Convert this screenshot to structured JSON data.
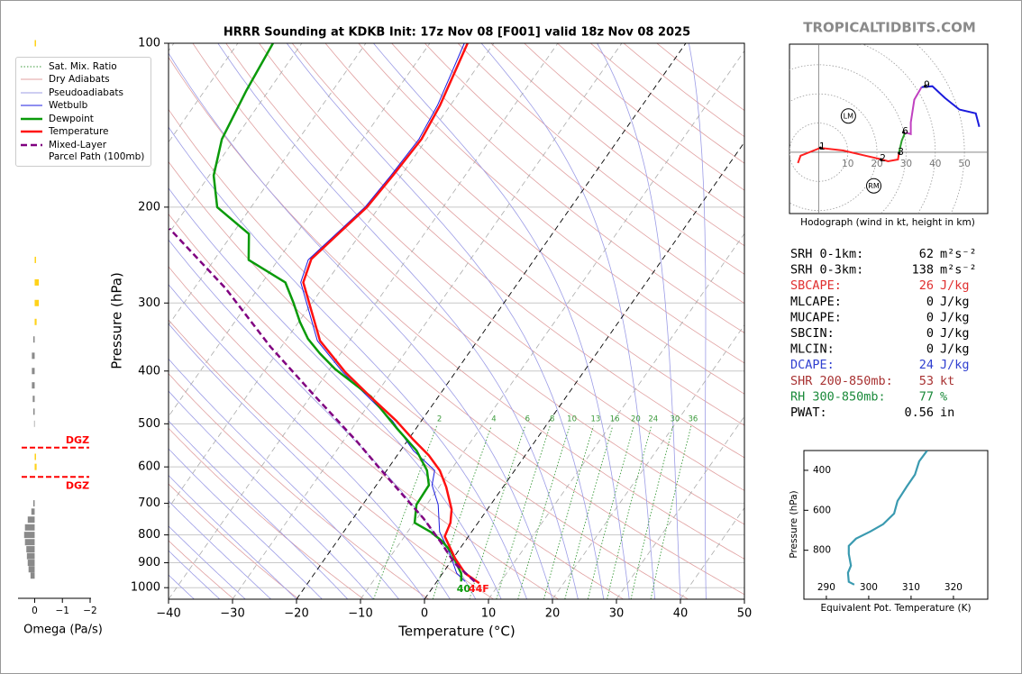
{
  "site": "TROPICALTIDBITS.COM",
  "chart_data": [
    {
      "type": "skewt",
      "title": "HRRR Sounding at KDKB Init: 17z Nov 08 [F001] valid 18z Nov 08 2025",
      "xlabel": "Temperature (°C)",
      "ylabel": "Pressure (hPa)",
      "log_scale": true,
      "xlim": [
        -40,
        50
      ],
      "ylim": [
        1050,
        100
      ],
      "xticks": [
        {
          "value": -40,
          "label": "−40"
        },
        {
          "value": -30,
          "label": "−30"
        },
        {
          "value": -20,
          "label": "−20"
        },
        {
          "value": -10,
          "label": "−10"
        },
        0,
        10,
        20,
        30,
        40,
        50
      ],
      "yticks": [
        100,
        200,
        300,
        400,
        500,
        600,
        700,
        800,
        900,
        1000
      ],
      "grid": true,
      "highlight_isotherms": [
        -20,
        0
      ],
      "legend": "upper left",
      "mixing_ratios": [
        2,
        4,
        6,
        8,
        10,
        13,
        16,
        20,
        24,
        30,
        36
      ],
      "reference_lines": [
        {
          "name": "Sat. Mix. Ratio",
          "color": "#3a9a3a",
          "style": "dotted"
        },
        {
          "name": "Dry Adiabats",
          "color": "#e0a0a0",
          "style": "solid"
        },
        {
          "name": "Pseudoadiabats",
          "color": "#9c9ce6",
          "style": "solid"
        }
      ],
      "series": [
        {
          "name": "Wetbulb",
          "color": "#1c1ce0",
          "width": 1,
          "style": "solid",
          "pressure": [
            974,
            941,
            858,
            790,
            704,
            648,
            609,
            560,
            494,
            446,
            402,
            352,
            275,
            250,
            200,
            175,
            150,
            130,
            100
          ],
          "values": [
            4.4,
            2.2,
            -1.4,
            -5,
            -8.2,
            -11.3,
            -12.5,
            -18,
            -24.5,
            -31,
            -37.6,
            -45,
            -54,
            -55.3,
            -52.2,
            -51.6,
            -51.2,
            -52,
            -54.6
          ]
        },
        {
          "name": "Dewpoint",
          "color": "#0a9a0a",
          "width": 2.5,
          "style": "solid",
          "pressure": [
            974,
            941,
            858,
            820,
            790,
            760,
            704,
            648,
            609,
            560,
            508,
            446,
            397,
            371,
            349,
            325,
            299,
            275,
            250,
            224,
            200,
            175,
            150,
            122,
            100
          ],
          "values": [
            3.8,
            2.9,
            -1.1,
            -3.7,
            -6.4,
            -9.9,
            -11.6,
            -11.8,
            -13.7,
            -17.5,
            -23.2,
            -30.5,
            -39.1,
            -43.3,
            -46.7,
            -49.8,
            -53,
            -56.4,
            -64.6,
            -67.4,
            -75.3,
            -79.3,
            -82,
            -83.5,
            -84.5
          ]
        },
        {
          "name": "Temperature",
          "color": "#ff1010",
          "width": 2.5,
          "style": "solid",
          "pressure": [
            981,
            941,
            885,
            805,
            760,
            718,
            653,
            609,
            571,
            533,
            494,
            446,
            402,
            352,
            275,
            249,
            200,
            175,
            150,
            130,
            100
          ],
          "values": [
            6.8,
            3.5,
            0.4,
            -3.7,
            -4.3,
            -5.6,
            -8.9,
            -11.7,
            -15.1,
            -19.4,
            -23.9,
            -30.6,
            -37.2,
            -44.6,
            -53.6,
            -54.9,
            -51.9,
            -51.3,
            -50.8,
            -51.6,
            -54.1
          ]
        },
        {
          "name": "Mixed-Layer\nParcel Path (100mb)",
          "color": "#800080",
          "width": 2.5,
          "style": "dashed",
          "pressure": [
            974,
            902,
            820,
            746,
            678,
            605,
            539,
            437,
            361,
            282,
            219
          ],
          "values": [
            5.9,
            0.8,
            -4,
            -9,
            -14.6,
            -21.2,
            -27.8,
            -40.4,
            -51.7,
            -65.1,
            -80.4
          ]
        }
      ],
      "surface_labels": [
        {
          "text": "40",
          "color": "#0a9a0a"
        },
        {
          "text": "44F",
          "color": "#ff1010"
        }
      ]
    },
    {
      "type": "hodograph",
      "caption": "Hodograph (wind in kt, height in km)",
      "xlim": [
        -10,
        58
      ],
      "ylim": [
        -21,
        37
      ],
      "rings": [
        10,
        20,
        30,
        40,
        50
      ],
      "series": [
        {
          "color": "#ff2020",
          "u": [
            -7.1,
            -6.2,
            0.6,
            8.4,
            16.1,
            21.7,
            23.8,
            27.2,
            27.6
          ],
          "v": [
            -3.7,
            -1.2,
            1.5,
            0.6,
            -1.2,
            -2.5,
            -3.1,
            -2.5,
            0
          ]
        },
        {
          "color": "#2ca02c",
          "u": [
            27.6,
            28.5,
            29.7
          ],
          "v": [
            0,
            4.0,
            6.8
          ]
        },
        {
          "color": "#c040c0",
          "u": [
            29.7,
            31.6,
            31.6,
            32.8,
            35.3
          ],
          "v": [
            6.8,
            6.2,
            10.2,
            18,
            22.3
          ]
        },
        {
          "color": "#1a1adc",
          "u": [
            35.3,
            39,
            43.3,
            48.3,
            53.9,
            55.1
          ],
          "v": [
            22.3,
            22.6,
            18.6,
            14.6,
            13.3,
            8.7
          ]
        }
      ],
      "heights": {
        "labels": [
          1,
          2,
          3,
          6,
          9
        ],
        "u": [
          0.6,
          21.4,
          27.6,
          29.1,
          36.5
        ],
        "v": [
          1.5,
          -2.5,
          -0.3,
          6.8,
          22.6
        ]
      },
      "storm_motions": [
        {
          "label": "LM",
          "u": 10.2,
          "v": 12.4
        },
        {
          "label": "RM",
          "u": 18.9,
          "v": -11.5
        }
      ]
    },
    {
      "type": "line",
      "xlabel": "Equivalent Pot. Temperature (K)",
      "ylabel": "Pressure (hPa)",
      "xlim": [
        284.7,
        328.1
      ],
      "ylim": [
        1045,
        301
      ],
      "xticks": [
        290,
        300,
        310,
        320
      ],
      "yticks": [
        400,
        600,
        800
      ],
      "color": "#3a9ab0",
      "pressure": [
        301,
        355,
        422,
        481,
        553,
        616,
        670,
        706,
        742,
        778,
        818,
        877,
        913,
        958,
        972
      ],
      "values": [
        313.8,
        311.9,
        310.9,
        309,
        306.8,
        306,
        303.4,
        300.4,
        297.0,
        295.3,
        295.3,
        295.8,
        295.1,
        295.3,
        296.6
      ]
    },
    {
      "type": "bar",
      "orientation": "horizontal",
      "xlabel": "Omega (Pa/s)",
      "log_scale": true,
      "xlim": [
        0.6,
        -2
      ],
      "ylim": [
        1050,
        100
      ],
      "xticks": [
        0,
        {
          "value": -1,
          "label": "−1"
        },
        {
          "value": -2,
          "label": "−2"
        }
      ],
      "color_sinking": "#8a8a8a",
      "color_rising": "#ffd21a",
      "pressure": [
        100,
        250,
        275,
        300,
        325,
        350,
        375,
        400,
        425,
        450,
        475,
        500,
        575,
        600,
        700,
        725,
        750,
        775,
        800,
        825,
        850,
        875,
        900,
        925,
        950
      ],
      "values": [
        -0.05,
        -0.05,
        -0.15,
        -0.15,
        -0.07,
        0.05,
        0.1,
        0.1,
        0.1,
        0.07,
        0.05,
        0.02,
        -0.05,
        -0.07,
        0.05,
        0.12,
        0.25,
        0.35,
        0.38,
        0.35,
        0.3,
        0.28,
        0.25,
        0.22,
        0.15
      ],
      "dgz": {
        "labels": [
          "DGZ",
          "DGZ"
        ],
        "pressure": [
          553,
          626
        ],
        "color": "#ff0000"
      }
    }
  ],
  "stats": [
    {
      "label": "SRH 0-1km:",
      "value": 62,
      "unit": "m²s⁻²",
      "color": "#000000"
    },
    {
      "label": "SRH 0-3km:",
      "value": 138,
      "unit": "m²s⁻²",
      "color": "#000000"
    },
    {
      "label": "SBCAPE:",
      "value": 26,
      "unit": "J/kg",
      "color": "#e03030"
    },
    {
      "label": "MLCAPE:",
      "value": 0,
      "unit": "J/kg",
      "color": "#000000"
    },
    {
      "label": "MUCAPE:",
      "value": 0,
      "unit": "J/kg",
      "color": "#000000"
    },
    {
      "label": "SBCIN:",
      "value": 0,
      "unit": "J/kg",
      "color": "#000000"
    },
    {
      "label": "MLCIN:",
      "value": 0,
      "unit": "J/kg",
      "color": "#000000"
    },
    {
      "label": "DCAPE:",
      "value": 24,
      "unit": "J/kg",
      "color": "#3040d0"
    },
    {
      "label": "SHR 200-850mb:",
      "value": 53,
      "unit": "kt",
      "color": "#a83232"
    },
    {
      "label": "RH 300-850mb:",
      "value": 77,
      "unit": "%",
      "color": "#1a8a3a"
    },
    {
      "label": "PWAT:",
      "value": 0.56,
      "unit": "in",
      "color": "#000000"
    }
  ]
}
